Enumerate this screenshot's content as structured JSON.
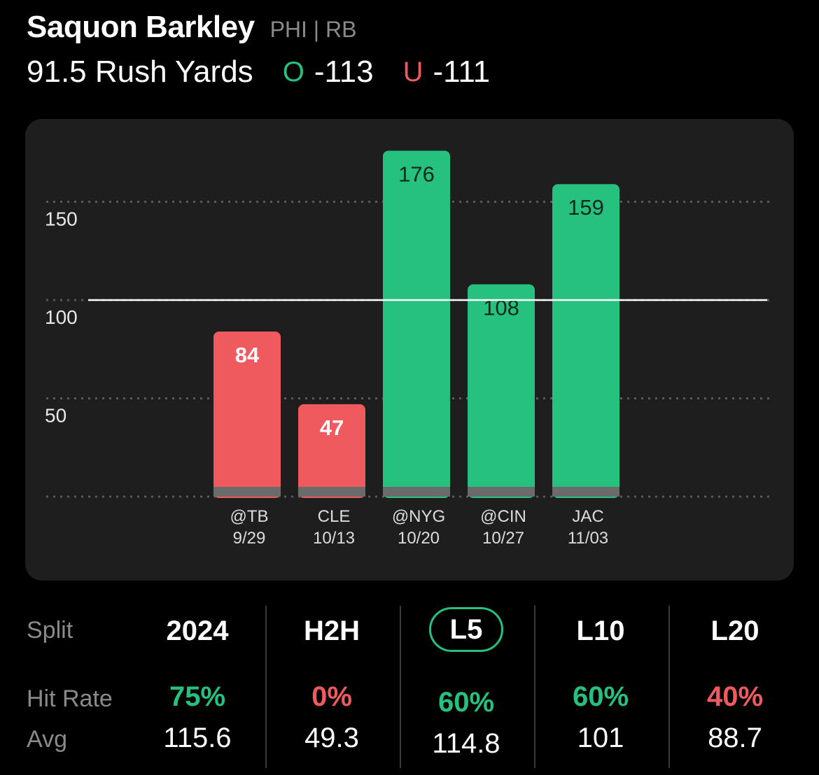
{
  "header": {
    "player_name": "Saquon Barkley",
    "player_meta": "PHI | RB",
    "line": "91.5 Rush Yards",
    "over_letter": "O",
    "over_odds": "-113",
    "under_letter": "U",
    "under_odds": "-111"
  },
  "colors": {
    "over": "#26c17e",
    "under": "#ef5a5f",
    "background": "#000000",
    "card": "#1e1e1e"
  },
  "chart_data": {
    "type": "bar",
    "categories": [
      "@TB",
      "CLE",
      "@NYG",
      "@CIN",
      "JAC"
    ],
    "dates": [
      "9/29",
      "10/13",
      "10/20",
      "10/27",
      "11/03"
    ],
    "values": [
      84,
      47,
      176,
      108,
      159
    ],
    "ylim": [
      0,
      190
    ],
    "yticks": [
      50,
      100,
      150
    ],
    "reference_line": 100,
    "grid": true
  },
  "splits": {
    "row_labels": {
      "split": "Split",
      "hit_rate": "Hit Rate",
      "avg": "Avg"
    },
    "active": "L5",
    "columns": [
      {
        "split": "2024",
        "hit_rate": "75%",
        "hit_positive": true,
        "avg": "115.6"
      },
      {
        "split": "H2H",
        "hit_rate": "0%",
        "hit_positive": false,
        "avg": "49.3"
      },
      {
        "split": "L5",
        "hit_rate": "60%",
        "hit_positive": true,
        "avg": "114.8"
      },
      {
        "split": "L10",
        "hit_rate": "60%",
        "hit_positive": true,
        "avg": "101"
      },
      {
        "split": "L20",
        "hit_rate": "40%",
        "hit_positive": false,
        "avg": "88.7"
      }
    ]
  }
}
